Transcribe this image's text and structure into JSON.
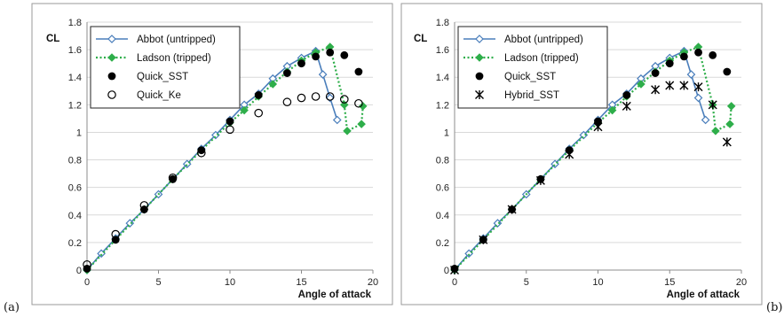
{
  "chart_data": [
    {
      "type": "scatter",
      "panel_label": "(a)",
      "xlabel": "Angle of attack",
      "ylabel": "CL",
      "xlim": [
        0,
        20
      ],
      "ylim": [
        0,
        1.8
      ],
      "xticks": [
        "0",
        "5",
        "10",
        "15",
        "20"
      ],
      "yticks": [
        "0",
        "0.2",
        "0.4",
        "0.6",
        "0.8",
        "1",
        "1.2",
        "1.4",
        "1.6",
        "1.8"
      ],
      "legend_position": "top-left",
      "series": [
        {
          "name": "Abbot (untripped)",
          "style": "line-diamond-open",
          "color": "#4a7ebb",
          "x": [
            0,
            1,
            2,
            3,
            4,
            5,
            6,
            7,
            8,
            9,
            10,
            11,
            12,
            13,
            14,
            15,
            16,
            16.5,
            17,
            17.5
          ],
          "y": [
            0,
            0.12,
            0.23,
            0.34,
            0.44,
            0.55,
            0.66,
            0.77,
            0.88,
            0.98,
            1.09,
            1.2,
            1.28,
            1.39,
            1.48,
            1.54,
            1.59,
            1.42,
            1.25,
            1.09
          ]
        },
        {
          "name": "Ladson (tripped)",
          "style": "dotted-diamond-filled",
          "color": "#2eae4a",
          "x": [
            0,
            2,
            4,
            6,
            8,
            10,
            11,
            12,
            13,
            14,
            15,
            16,
            17,
            18,
            18.2,
            19.2,
            19.3
          ],
          "y": [
            0,
            0.22,
            0.44,
            0.66,
            0.87,
            1.07,
            1.16,
            1.26,
            1.35,
            1.44,
            1.52,
            1.58,
            1.62,
            1.2,
            1.01,
            1.06,
            1.19
          ]
        },
        {
          "name": "Quick_SST",
          "style": "marker-filled-circle",
          "color": "#000000",
          "x": [
            0,
            2,
            4,
            6,
            8,
            10,
            12,
            14,
            15,
            16,
            17,
            18,
            19
          ],
          "y": [
            0.01,
            0.22,
            0.44,
            0.66,
            0.87,
            1.08,
            1.27,
            1.43,
            1.5,
            1.55,
            1.58,
            1.56,
            1.44
          ]
        },
        {
          "name": "Quick_Ke",
          "style": "marker-open-circle",
          "color": "#000000",
          "x": [
            0,
            2,
            4,
            6,
            8,
            10,
            12,
            14,
            15,
            16,
            17,
            18,
            19
          ],
          "y": [
            0.04,
            0.26,
            0.47,
            0.67,
            0.85,
            1.02,
            1.14,
            1.22,
            1.25,
            1.26,
            1.26,
            1.24,
            1.21
          ]
        }
      ]
    },
    {
      "type": "scatter",
      "panel_label": "(b)",
      "xlabel": "Angle of attack",
      "ylabel": "CL",
      "xlim": [
        0,
        20
      ],
      "ylim": [
        0,
        1.8
      ],
      "xticks": [
        "0",
        "5",
        "10",
        "15",
        "20"
      ],
      "yticks": [
        "0",
        "0.2",
        "0.4",
        "0.6",
        "0.8",
        "1",
        "1.2",
        "1.4",
        "1.6",
        "1.8"
      ],
      "legend_position": "top-left",
      "series": [
        {
          "name": "Abbot (untripped)",
          "style": "line-diamond-open",
          "color": "#4a7ebb",
          "x": [
            0,
            1,
            2,
            3,
            4,
            5,
            6,
            7,
            8,
            9,
            10,
            11,
            12,
            13,
            14,
            15,
            16,
            16.5,
            17,
            17.5
          ],
          "y": [
            0,
            0.12,
            0.23,
            0.34,
            0.44,
            0.55,
            0.66,
            0.77,
            0.88,
            0.98,
            1.09,
            1.2,
            1.28,
            1.39,
            1.48,
            1.54,
            1.59,
            1.42,
            1.25,
            1.09
          ]
        },
        {
          "name": "Ladson (tripped)",
          "style": "dotted-diamond-filled",
          "color": "#2eae4a",
          "x": [
            0,
            2,
            4,
            6,
            8,
            10,
            11,
            12,
            13,
            14,
            15,
            16,
            17,
            18,
            18.2,
            19.2,
            19.3
          ],
          "y": [
            0,
            0.22,
            0.44,
            0.66,
            0.87,
            1.07,
            1.16,
            1.26,
            1.35,
            1.44,
            1.52,
            1.58,
            1.62,
            1.2,
            1.01,
            1.06,
            1.19
          ]
        },
        {
          "name": "Quick_SST",
          "style": "marker-filled-circle",
          "color": "#000000",
          "x": [
            0,
            2,
            4,
            6,
            8,
            10,
            12,
            14,
            15,
            16,
            17,
            18,
            19
          ],
          "y": [
            0.01,
            0.22,
            0.44,
            0.66,
            0.87,
            1.08,
            1.27,
            1.43,
            1.5,
            1.55,
            1.58,
            1.56,
            1.44
          ]
        },
        {
          "name": "Hybrid_SST",
          "style": "marker-asterisk",
          "color": "#000000",
          "x": [
            0,
            2,
            4,
            6,
            8,
            10,
            12,
            14,
            15,
            16,
            17,
            18,
            19
          ],
          "y": [
            0,
            0.22,
            0.44,
            0.65,
            0.84,
            1.04,
            1.19,
            1.31,
            1.34,
            1.34,
            1.33,
            1.2,
            0.93
          ]
        }
      ]
    }
  ]
}
